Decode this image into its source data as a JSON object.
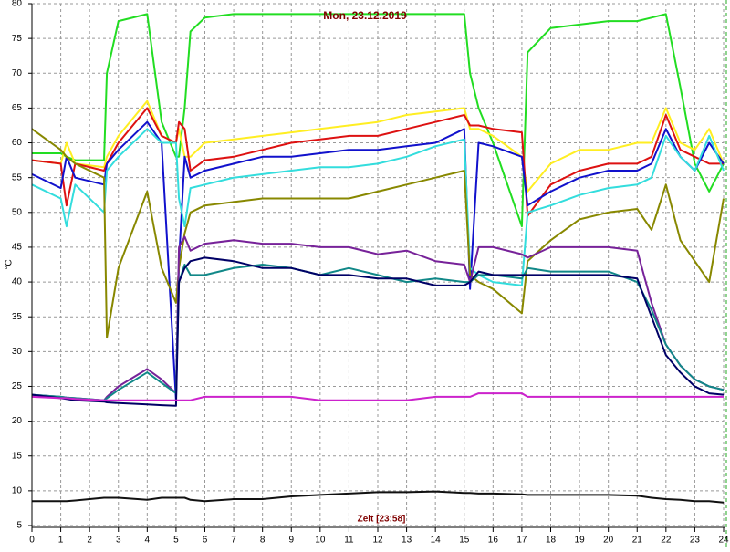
{
  "chart_data": {
    "type": "line",
    "title": "Mon, 23.12.2019",
    "xlabel": "Zeit [23:58]",
    "ylabel": "°C",
    "grid": true,
    "xlim": [
      0,
      24
    ],
    "ylim": [
      5,
      80
    ],
    "xticks": [
      0,
      1,
      2,
      3,
      4,
      5,
      6,
      7,
      8,
      9,
      10,
      11,
      12,
      13,
      14,
      15,
      16,
      17,
      18,
      19,
      20,
      21,
      22,
      23,
      24
    ],
    "yticks": [
      5,
      10,
      15,
      20,
      25,
      30,
      35,
      40,
      45,
      50,
      55,
      60,
      65,
      70,
      75,
      80
    ],
    "x": [
      0,
      1,
      1.2,
      1.5,
      2.5,
      2.6,
      3,
      4,
      4.5,
      5,
      5.1,
      5.3,
      5.5,
      6,
      7,
      8,
      9,
      10,
      11,
      12,
      13,
      14,
      15,
      15.2,
      15.5,
      16,
      17,
      17.2,
      18,
      19,
      20,
      21,
      21.5,
      22,
      22.5,
      23,
      23.5,
      24
    ],
    "series": [
      {
        "color": "#22dd22",
        "values": [
          58.5,
          58.5,
          58,
          57.5,
          57.5,
          70,
          77.5,
          78.5,
          63,
          58,
          58,
          65,
          76,
          78,
          78.5,
          78.5,
          78.5,
          78.5,
          78.5,
          78.5,
          78.5,
          78.5,
          78.5,
          70,
          65,
          60,
          48,
          73,
          76.5,
          77,
          77.5,
          77.5,
          78,
          78.5,
          68,
          57,
          53,
          57
        ]
      },
      {
        "color": "#ffee22",
        "values": [
          57.5,
          57,
          60,
          57,
          56.5,
          58,
          61,
          66,
          61,
          60,
          62,
          58,
          58,
          60,
          60.5,
          61,
          61.5,
          62,
          62.5,
          63,
          64,
          64.5,
          65,
          62,
          62,
          61,
          58,
          53,
          57,
          59,
          59,
          60,
          60,
          65,
          60,
          59,
          62,
          57
        ]
      },
      {
        "color": "#dd1111",
        "values": [
          57.5,
          57,
          51,
          57,
          56,
          57,
          60,
          65,
          61,
          60,
          63,
          62,
          56,
          57.5,
          58,
          59,
          60,
          60.5,
          61,
          61,
          62,
          63,
          64,
          62.5,
          62.5,
          62,
          61.5,
          49.5,
          54,
          56,
          57,
          57,
          58,
          64,
          59,
          58,
          57,
          57
        ]
      },
      {
        "color": "#1111cc",
        "values": [
          55.5,
          53.5,
          58,
          55,
          54,
          57,
          59,
          63,
          60,
          23,
          43,
          58,
          55,
          56,
          57,
          58,
          58,
          58.5,
          59,
          59,
          59.5,
          60,
          62,
          39,
          60,
          59.5,
          58,
          51,
          53,
          55,
          56,
          56,
          57,
          62,
          58,
          56,
          60,
          57
        ]
      },
      {
        "color": "#33dddd",
        "values": [
          54,
          52,
          48,
          54,
          50,
          56,
          58,
          62,
          60,
          60,
          52,
          48,
          53.5,
          54,
          55,
          55.5,
          56,
          56.5,
          56.5,
          57,
          58,
          59.5,
          60.5,
          42,
          41,
          40,
          39.5,
          50,
          51,
          52.5,
          53.5,
          54,
          55,
          61,
          58,
          56,
          61,
          56
        ]
      },
      {
        "color": "#888800",
        "values": [
          62,
          59,
          58,
          57,
          55,
          32,
          42,
          53,
          42,
          37,
          42,
          47,
          50,
          51,
          51.5,
          52,
          52,
          52,
          52,
          53,
          54,
          55,
          56,
          41,
          40,
          39,
          35.5,
          43,
          46,
          49,
          50,
          50.5,
          47.5,
          54,
          46,
          43,
          40,
          52
        ]
      },
      {
        "color": "#772299",
        "values": [
          23.8,
          23.5,
          23.4,
          23.3,
          23,
          23.5,
          25,
          27.5,
          26,
          24,
          45,
          46.5,
          44.5,
          45.5,
          46,
          45.5,
          45.5,
          45,
          45,
          44,
          44.5,
          43,
          42.5,
          40,
          45,
          45,
          44,
          43.5,
          45,
          45,
          45,
          44.5,
          37,
          31,
          28,
          26,
          25,
          24.5
        ]
      },
      {
        "color": "#118888",
        "values": [
          23.8,
          23.5,
          23.4,
          23.3,
          23,
          23.3,
          24.5,
          27,
          25.5,
          24,
          40,
          42.5,
          41,
          41,
          42,
          42.5,
          42,
          41,
          42,
          41,
          40,
          40.5,
          40,
          40,
          41,
          41,
          40.5,
          42,
          41.5,
          41.5,
          41.5,
          40,
          36,
          31,
          28,
          26,
          25,
          24.5
        ]
      },
      {
        "color": "#000066",
        "values": [
          23.8,
          23.3,
          23.2,
          23,
          22.8,
          22.7,
          22.6,
          22.4,
          22.3,
          22.2,
          40,
          42,
          43,
          43.5,
          43,
          42,
          42,
          41,
          41,
          40.5,
          40.5,
          39.5,
          39.5,
          40,
          41.5,
          41,
          41,
          41,
          41,
          41,
          41,
          40.5,
          35,
          29.5,
          27,
          25,
          24,
          23.8
        ]
      },
      {
        "color": "#cc22cc",
        "values": [
          23.5,
          23.3,
          23.3,
          23.2,
          23,
          23,
          23,
          23,
          23,
          23,
          23,
          23,
          23,
          23.5,
          23.5,
          23.5,
          23.5,
          23,
          23,
          23,
          23,
          23.5,
          23.5,
          23.5,
          24,
          24,
          24,
          23.5,
          23.5,
          23.5,
          23.5,
          23.5,
          23.5,
          23.5,
          23.5,
          23.5,
          23.5,
          23.5
        ]
      },
      {
        "color": "#111111",
        "values": [
          8.5,
          8.5,
          8.5,
          8.6,
          9,
          9,
          9,
          8.7,
          9,
          9,
          9,
          9,
          8.7,
          8.5,
          8.8,
          8.8,
          9.2,
          9.4,
          9.6,
          9.8,
          9.8,
          9.9,
          9.7,
          9.7,
          9.6,
          9.6,
          9.5,
          9.4,
          9.4,
          9.4,
          9.4,
          9.3,
          9,
          8.8,
          8.7,
          8.5,
          8.5,
          8.3
        ]
      }
    ]
  }
}
